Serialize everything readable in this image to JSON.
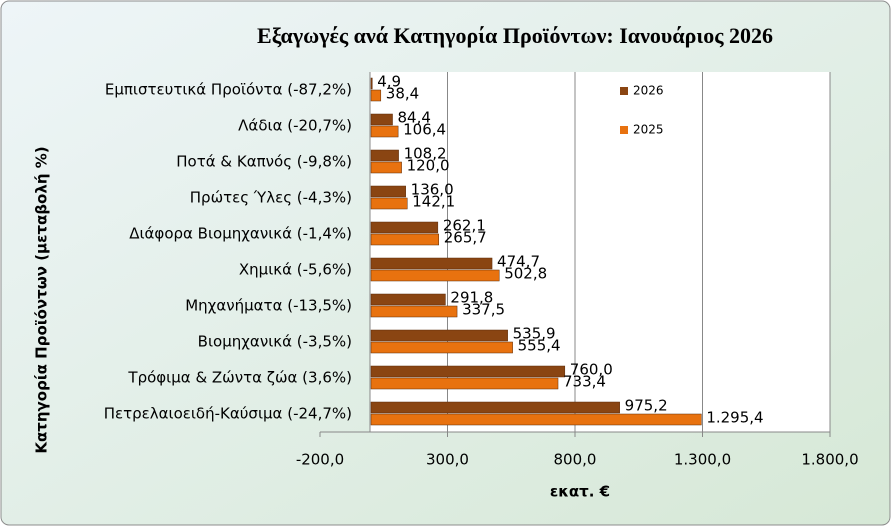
{
  "chart_data": {
    "type": "hbar",
    "title": "Εξαγωγές ανά Κατηγορία Προϊόντων:  Ιανουάριος 2026",
    "x_label": "εκατ. €",
    "y_label": "Κατηγορία Προϊόντων (μεταβολή %)",
    "categories": [
      "Εμπιστευτικά Προϊόντα (-87,2%)",
      "Λάδια (-20,7%)",
      "Ποτά & Καπνός (-9,8%)",
      "Πρώτες Ύλες (-4,3%)",
      "Διάφορα Βιομηχανικά (-1,4%)",
      "Χημικά (-5,6%)",
      "Μηχανήματα (-13,5%)",
      "Βιομηχανικά (-3,5%)",
      "Τρόφιμα & Ζώντα ζώα (3,6%)",
      "Πετρελαιοειδή-Καύσιμα (-24,7%)"
    ],
    "series": [
      {
        "name": "2026",
        "color": "#8a4512",
        "values": [
          4.9,
          84.4,
          108.2,
          136.0,
          262.1,
          474.7,
          291.8,
          535.9,
          760.0,
          975.2
        ],
        "value_labels": [
          "4,9",
          "84,4",
          "108,2",
          "136,0",
          "262,1",
          "474,7",
          "291,8",
          "535,9",
          "760,0",
          "975,2"
        ]
      },
      {
        "name": "2025",
        "color": "#e8720f",
        "values": [
          38.4,
          106.4,
          120.0,
          142.1,
          265.7,
          502.8,
          337.5,
          555.4,
          733.4,
          1295.4
        ],
        "value_labels": [
          "38,4",
          "106,4",
          "120,0",
          "142,1",
          "265,7",
          "502,8",
          "337,5",
          "555,4",
          "733,4",
          "1.295,4"
        ]
      }
    ],
    "xlim": [
      -200,
      1800
    ],
    "xticks": [
      {
        "value": -200,
        "label": "-200,0"
      },
      {
        "value": 300,
        "label": "300,0"
      },
      {
        "value": 800,
        "label": "800,0"
      },
      {
        "value": 1300,
        "label": "1.300,0"
      },
      {
        "value": 1800,
        "label": "1.800,0"
      }
    ],
    "grid": true,
    "legend": "top-right"
  }
}
